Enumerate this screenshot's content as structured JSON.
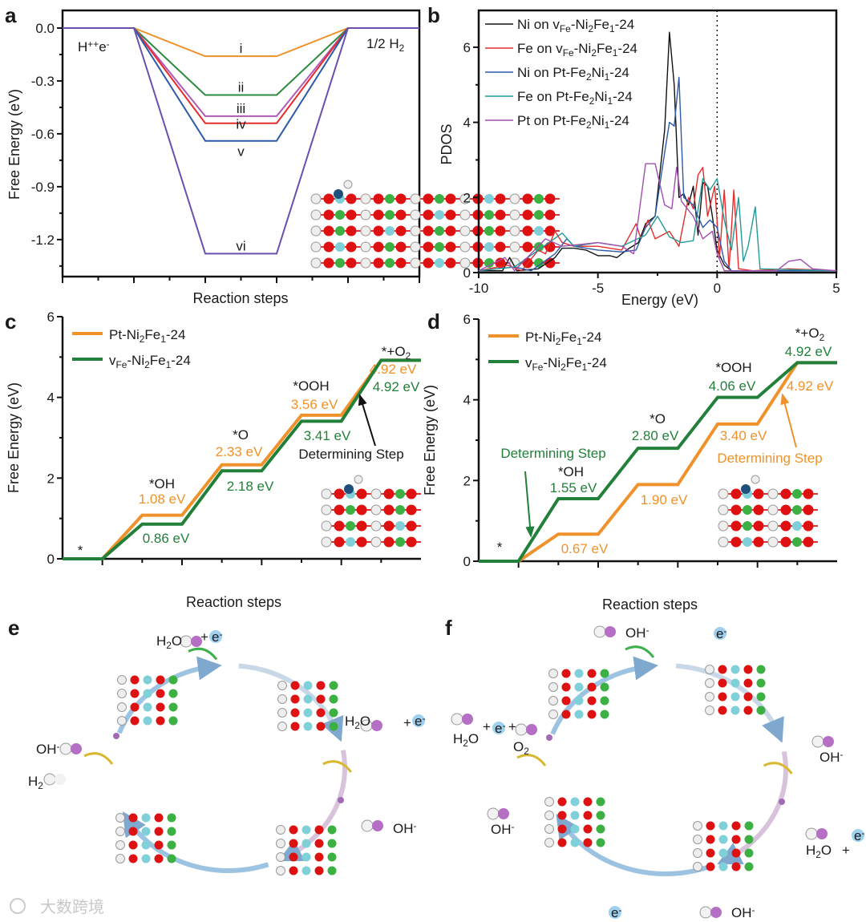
{
  "panel_labels": [
    "a",
    "b",
    "c",
    "d",
    "e",
    "f"
  ],
  "watermark": "大数跨境",
  "chart_data": [
    {
      "id": "a",
      "type": "line",
      "xlabel": "Reaction steps",
      "ylabel": "Free Energy (eV)",
      "ylim": [
        -1.41,
        0.1
      ],
      "yticks": [
        "0.0",
        "-0.3",
        "-0.6",
        "-0.9",
        "-1.2"
      ],
      "ytick_values": [
        0,
        -0.3,
        -0.6,
        -0.9,
        -1.2
      ],
      "start_label": "H^+^+e^-",
      "end_label": "1/2 H_2",
      "series": [
        {
          "name": "i",
          "color": "#f0922b",
          "value": -0.16
        },
        {
          "name": "ii",
          "color": "#2e8b3e",
          "value": -0.38
        },
        {
          "name": "iii",
          "color": "#b05ab8",
          "value": -0.5
        },
        {
          "name": "iv",
          "color": "#e52b2b",
          "value": -0.54
        },
        {
          "name": "v",
          "color": "#2c5aa8",
          "value": -0.64
        },
        {
          "name": "vi",
          "color": "#6a4fb0",
          "value": -1.28
        }
      ]
    },
    {
      "id": "b",
      "type": "line",
      "xlabel": "Energy (eV)",
      "ylabel": "PDOS",
      "xlim": [
        -10,
        5
      ],
      "ylim": [
        0,
        6.98
      ],
      "xticks": [
        -10,
        -5,
        0,
        5
      ],
      "yticks": [
        0,
        2,
        4,
        6
      ],
      "fermi_line": 0,
      "legend": "top-left",
      "series": [
        {
          "name": [
            "Ni  on v",
            "_Fe",
            "-Ni",
            "_2",
            "Fe",
            "_1",
            "-24"
          ],
          "color": "#111111",
          "points": [
            [
              -10,
              0.05
            ],
            [
              -9,
              0.05
            ],
            [
              -8.7,
              0.4
            ],
            [
              -8.4,
              0.05
            ],
            [
              -7.5,
              0.1
            ],
            [
              -6.8,
              0.4
            ],
            [
              -6.5,
              0.65
            ],
            [
              -6,
              0.65
            ],
            [
              -5.5,
              0.6
            ],
            [
              -5,
              0.45
            ],
            [
              -4.5,
              0.45
            ],
            [
              -4.2,
              0.4
            ],
            [
              -3.8,
              0.6
            ],
            [
              -3.3,
              0.8
            ],
            [
              -3,
              1.3
            ],
            [
              -2.6,
              1.5
            ],
            [
              -2.2,
              3.8
            ],
            [
              -2,
              6.4
            ],
            [
              -1.8,
              5
            ],
            [
              -1.6,
              2.0
            ],
            [
              -1.4,
              2.1
            ],
            [
              -1.2,
              1.8
            ],
            [
              -1,
              2.3
            ],
            [
              -0.8,
              1
            ],
            [
              -0.6,
              2.4
            ],
            [
              -0.4,
              2.3
            ],
            [
              -0.2,
              1.5
            ],
            [
              0,
              0.6
            ],
            [
              0.3,
              0.2
            ],
            [
              0.6,
              0.05
            ],
            [
              5,
              0.05
            ]
          ]
        },
        {
          "name": [
            "Fe on  v",
            "_Fe",
            "-Ni",
            "_2",
            "Fe",
            "_1",
            "-24"
          ],
          "color": "#e52b2b",
          "points": [
            [
              -10,
              0.05
            ],
            [
              -8.8,
              0.2
            ],
            [
              -8.2,
              0.05
            ],
            [
              -7.5,
              0.6
            ],
            [
              -7.2,
              0.5
            ],
            [
              -6.8,
              1.1
            ],
            [
              -6.5,
              0.8
            ],
            [
              -6,
              0.7
            ],
            [
              -5,
              0.7
            ],
            [
              -4,
              0.6
            ],
            [
              -3.4,
              1.3
            ],
            [
              -3.2,
              0.9
            ],
            [
              -2.9,
              1.4
            ],
            [
              -2.6,
              0.9
            ],
            [
              -2,
              1.1
            ],
            [
              -1.6,
              0.7
            ],
            [
              -1.2,
              2.0
            ],
            [
              -1,
              1.7
            ],
            [
              -0.8,
              2.6
            ],
            [
              -0.6,
              2.8
            ],
            [
              -0.4,
              1.5
            ],
            [
              -0.1,
              2.3
            ],
            [
              0.1,
              0.4
            ],
            [
              0.3,
              2.2
            ],
            [
              0.5,
              0.1
            ],
            [
              0.7,
              2.2
            ],
            [
              0.9,
              0.1
            ],
            [
              1.5,
              0.05
            ],
            [
              3,
              0.1
            ],
            [
              5,
              0.05
            ]
          ]
        },
        {
          "name": [
            "Ni  on Pt-Fe",
            "_2",
            "Ni",
            "_1",
            "-24"
          ],
          "color": "#2c5aa8",
          "points": [
            [
              -10,
              0.05
            ],
            [
              -8.5,
              0.15
            ],
            [
              -7.8,
              0.05
            ],
            [
              -6.8,
              0.5
            ],
            [
              -6.3,
              0.9
            ],
            [
              -6,
              0.7
            ],
            [
              -5,
              0.6
            ],
            [
              -4,
              0.55
            ],
            [
              -3.4,
              0.6
            ],
            [
              -3,
              1.2
            ],
            [
              -2.6,
              1.5
            ],
            [
              -2.2,
              3.2
            ],
            [
              -2,
              4.0
            ],
            [
              -1.8,
              3.9
            ],
            [
              -1.6,
              5.2
            ],
            [
              -1.4,
              2.0
            ],
            [
              -1.2,
              1.9
            ],
            [
              -1,
              1.8
            ],
            [
              -0.6,
              1.2
            ],
            [
              -0.3,
              1.4
            ],
            [
              0,
              1.2
            ],
            [
              0.3,
              0.3
            ],
            [
              0.6,
              0.05
            ],
            [
              5,
              0.05
            ]
          ]
        },
        {
          "name": [
            "Fe on Pt-Fe",
            "_2",
            "Ni",
            "_1",
            "-24"
          ],
          "color": "#239a96",
          "points": [
            [
              -10,
              0.05
            ],
            [
              -8.5,
              0.15
            ],
            [
              -7.5,
              0.6
            ],
            [
              -6.5,
              1.05
            ],
            [
              -6,
              0.7
            ],
            [
              -5,
              0.8
            ],
            [
              -4,
              0.7
            ],
            [
              -3,
              1.0
            ],
            [
              -2.5,
              1.5
            ],
            [
              -2,
              0.95
            ],
            [
              -1.5,
              0.8
            ],
            [
              -1,
              0.85
            ],
            [
              -0.6,
              2.5
            ],
            [
              -0.3,
              2.2
            ],
            [
              0,
              2.5
            ],
            [
              0.3,
              1.4
            ],
            [
              0.6,
              0.6
            ],
            [
              0.9,
              2.0
            ],
            [
              1.1,
              0.3
            ],
            [
              1.3,
              0.7
            ],
            [
              1.6,
              1.75
            ],
            [
              1.8,
              0.1
            ],
            [
              5,
              0.05
            ]
          ]
        },
        {
          "name": [
            "Pt  on Pt-Fe",
            "_2",
            "Ni",
            "_1",
            "-24"
          ],
          "color": "#a24db0",
          "points": [
            [
              -10,
              0.05
            ],
            [
              -8.9,
              0.4
            ],
            [
              -8.5,
              0.05
            ],
            [
              -7.2,
              0.9
            ],
            [
              -6.5,
              0.7
            ],
            [
              -5,
              0.8
            ],
            [
              -4,
              0.7
            ],
            [
              -3.5,
              0.5
            ],
            [
              -3,
              2.9
            ],
            [
              -2.6,
              2.9
            ],
            [
              -2.2,
              1.8
            ],
            [
              -1.9,
              1.7
            ],
            [
              -1.7,
              2.8
            ],
            [
              -1.5,
              1.9
            ],
            [
              -1,
              1.5
            ],
            [
              -0.6,
              0.9
            ],
            [
              -0.2,
              1.1
            ],
            [
              0,
              0.5
            ],
            [
              0.3,
              0.05
            ],
            [
              2.5,
              0.05
            ],
            [
              3,
              0.3
            ],
            [
              3.5,
              0.35
            ],
            [
              4,
              0.1
            ],
            [
              5,
              0.05
            ]
          ]
        }
      ]
    },
    {
      "id": "c",
      "type": "line",
      "xlabel": "Reaction steps",
      "ylabel": "Free Energy (eV)",
      "ylim": [
        0,
        6
      ],
      "yticks": [
        0,
        2,
        4,
        6
      ],
      "steps": [
        "*",
        "*OH",
        "*O",
        "*OOH",
        "*+O_2"
      ],
      "series": [
        {
          "name": [
            "Pt-Ni",
            "_2",
            "Fe",
            "_1",
            "-24"
          ],
          "color": "#f0922b",
          "values": [
            0,
            1.08,
            2.33,
            3.56,
            4.92
          ],
          "labels": [
            "",
            "1.08 eV",
            "2.33 eV",
            "3.56 eV",
            "4.92 eV"
          ]
        },
        {
          "name": [
            "v",
            "_Fe",
            "-Ni",
            "_2",
            "Fe",
            "_1",
            "-24"
          ],
          "color": "#22803a",
          "values": [
            0,
            0.86,
            2.18,
            3.41,
            4.92
          ],
          "labels": [
            "",
            "0.86 eV",
            "2.18 eV",
            "3.41 eV",
            "4.92 eV"
          ]
        }
      ],
      "annotation": "Determining Step"
    },
    {
      "id": "d",
      "type": "line",
      "xlabel": "Reaction steps",
      "ylabel": "Free Energy (eV)",
      "ylim": [
        0,
        6
      ],
      "yticks": [
        0,
        2,
        4,
        6
      ],
      "steps": [
        "*",
        "*OH",
        "*O",
        "*OOH",
        "*+O_2"
      ],
      "series": [
        {
          "name": [
            "Pt-Ni",
            "_2",
            "Fe",
            "_1",
            "-24"
          ],
          "color": "#f0922b",
          "values": [
            0,
            0.67,
            1.9,
            3.4,
            4.92
          ],
          "labels": [
            "",
            "0.67 eV",
            "1.90 eV",
            "3.40 eV",
            "4.92 eV"
          ]
        },
        {
          "name": [
            "v",
            "_Fe",
            "-Ni",
            "_2",
            "Fe",
            "_1",
            "-24"
          ],
          "color": "#22803a",
          "values": [
            0,
            1.55,
            2.8,
            4.06,
            4.92
          ],
          "labels": [
            "",
            "1.55 eV",
            "2.80 eV",
            "4.06 eV",
            "4.92 eV"
          ]
        }
      ],
      "annotation": "Determining Step"
    }
  ],
  "diagram_e": {
    "labels": [
      "H_2O",
      "+",
      "e^-",
      "H_2O",
      "+",
      "e^-",
      "OH^-",
      "OH^-",
      "H_2"
    ]
  },
  "diagram_f": {
    "labels": [
      "OH^-",
      "e^-",
      "H_2O",
      "+",
      "e^-",
      "+",
      "O_2",
      "OH^-",
      "OH^-",
      "H_2O",
      "+",
      "e^-",
      "e^-",
      "OH^-"
    ]
  }
}
